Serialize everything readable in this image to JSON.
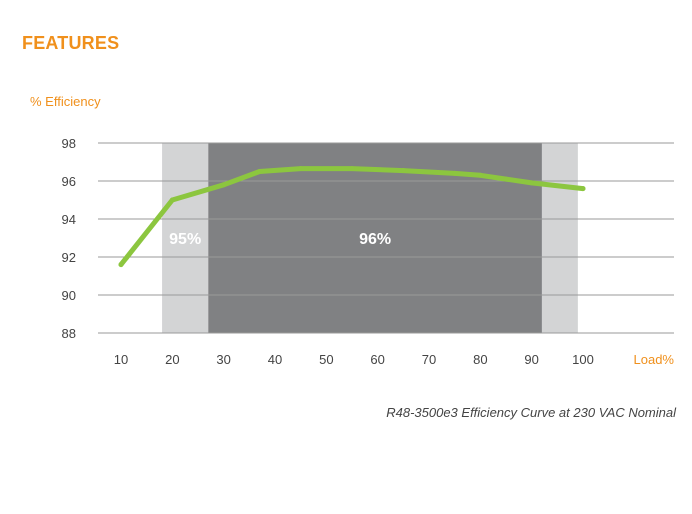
{
  "page": {
    "heading": "FEATURES"
  },
  "chart_data": {
    "type": "line",
    "ylabel": "% Efficiency",
    "xlabel": "Load%",
    "caption": "R48-3500e3 Efficiency Curve at 230 VAC Nominal",
    "x_ticks": [
      10,
      20,
      30,
      40,
      50,
      60,
      70,
      80,
      90,
      100
    ],
    "y_ticks": [
      88,
      90,
      92,
      94,
      96,
      98
    ],
    "xlim": [
      10,
      100
    ],
    "ylim": [
      88,
      98
    ],
    "grid": "horizontal",
    "series": [
      {
        "color": "#8cc63f",
        "x": [
          10,
          20,
          30,
          37,
          45,
          55,
          65,
          75,
          80,
          85,
          90,
          100
        ],
        "y": [
          91.6,
          95.0,
          95.8,
          96.5,
          96.65,
          96.65,
          96.55,
          96.4,
          96.3,
          96.1,
          95.9,
          95.6
        ]
      }
    ],
    "bands": [
      {
        "from": 18,
        "to": 27,
        "label": "95%",
        "color": "#d3d4d5"
      },
      {
        "from": 27,
        "to": 92,
        "label": "96%",
        "color": "#808183"
      },
      {
        "from": 92,
        "to": 99,
        "label": "",
        "color": "#d3d4d5"
      }
    ],
    "colors": {
      "accent": "#f0901c",
      "grid": "#9a9a9a"
    }
  }
}
